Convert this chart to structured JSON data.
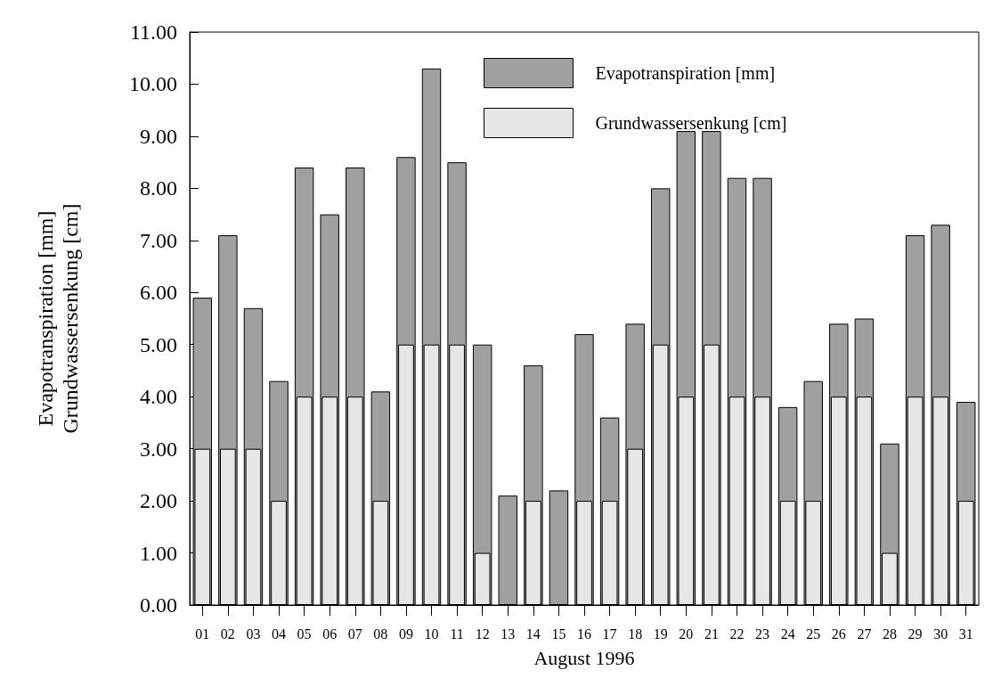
{
  "chart_data": {
    "type": "bar",
    "xlabel": "August 1996",
    "ylabel": "Evapotranspiration [mm]\nGrundwassersenkung [cm]",
    "categories": [
      "01",
      "02",
      "03",
      "04",
      "05",
      "06",
      "07",
      "08",
      "09",
      "10",
      "11",
      "12",
      "13",
      "14",
      "15",
      "16",
      "17",
      "18",
      "19",
      "20",
      "21",
      "22",
      "23",
      "24",
      "25",
      "26",
      "27",
      "28",
      "29",
      "30",
      "31"
    ],
    "series": [
      {
        "name": "Evapotranspiration [mm]",
        "color": "#a0a0a0",
        "values": [
          5.9,
          7.1,
          5.7,
          4.3,
          8.4,
          7.5,
          8.4,
          4.1,
          8.6,
          10.3,
          8.5,
          5.0,
          2.1,
          4.6,
          2.2,
          5.2,
          3.6,
          5.4,
          8.0,
          9.1,
          9.1,
          8.2,
          8.2,
          3.8,
          4.3,
          5.4,
          5.5,
          3.1,
          7.1,
          7.3,
          3.9
        ]
      },
      {
        "name": "Grundwassersenkung [cm]",
        "color": "#e6e6e6",
        "values": [
          3,
          3,
          3,
          2,
          4,
          4,
          4,
          2,
          5,
          5,
          5,
          1,
          null,
          2,
          null,
          2,
          2,
          3,
          5,
          4,
          5,
          4,
          4,
          2,
          2,
          4,
          4,
          1,
          4,
          4,
          2
        ]
      }
    ],
    "ylim": [
      0,
      11
    ],
    "yticks": [
      {
        "value": 0,
        "label": "0.00"
      },
      {
        "value": 1,
        "label": "1.00"
      },
      {
        "value": 2,
        "label": "2.00"
      },
      {
        "value": 3,
        "label": "3.00"
      },
      {
        "value": 4,
        "label": "4.00"
      },
      {
        "value": 5,
        "label": "5.00"
      },
      {
        "value": 6,
        "label": "6.00"
      },
      {
        "value": 7,
        "label": "7.00"
      },
      {
        "value": 8,
        "label": "8.00"
      },
      {
        "value": 9,
        "label": "9.00"
      },
      {
        "value": 10,
        "label": "10.00"
      },
      {
        "value": 11,
        "label": "11.00"
      }
    ],
    "grid": false,
    "legend": "top right"
  }
}
